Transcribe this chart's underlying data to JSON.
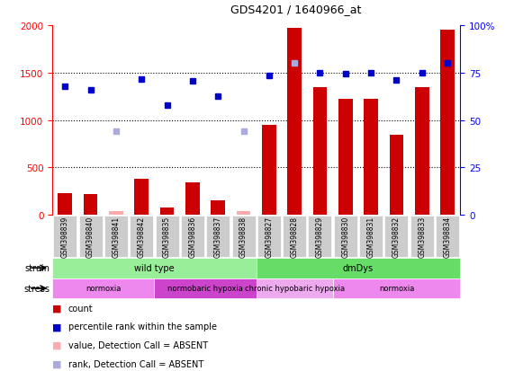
{
  "title": "GDS4201 / 1640966_at",
  "samples": [
    "GSM398839",
    "GSM398840",
    "GSM398841",
    "GSM398842",
    "GSM398835",
    "GSM398836",
    "GSM398837",
    "GSM398838",
    "GSM398827",
    "GSM398828",
    "GSM398829",
    "GSM398830",
    "GSM398831",
    "GSM398832",
    "GSM398833",
    "GSM398834"
  ],
  "count_values": [
    230,
    220,
    40,
    380,
    75,
    340,
    155,
    40,
    950,
    1975,
    1350,
    1220,
    1220,
    840,
    1350,
    1950
  ],
  "absent_count": [
    null,
    null,
    40,
    null,
    null,
    null,
    null,
    40,
    null,
    null,
    null,
    null,
    null,
    null,
    null,
    null
  ],
  "rank_values": [
    1360,
    1320,
    null,
    1430,
    1155,
    1415,
    1250,
    null,
    1465,
    null,
    1500,
    1490,
    1495,
    1420,
    1495,
    1600
  ],
  "absent_rank": [
    null,
    null,
    880,
    null,
    null,
    null,
    null,
    880,
    null,
    1600,
    null,
    null,
    null,
    null,
    null,
    null
  ],
  "ylim_left": [
    0,
    2000
  ],
  "ylim_right": [
    0,
    100
  ],
  "yticks_left": [
    0,
    500,
    1000,
    1500,
    2000
  ],
  "yticks_right": [
    0,
    25,
    50,
    75,
    100
  ],
  "bar_color": "#cc0000",
  "absent_bar_color": "#ffaaaa",
  "rank_color": "#0000cc",
  "absent_rank_color": "#aaaadd",
  "strain_groups": [
    {
      "label": "wild type",
      "start": 0,
      "end": 8,
      "color": "#99ee99"
    },
    {
      "label": "dmDys",
      "start": 8,
      "end": 16,
      "color": "#66dd66"
    }
  ],
  "stress_groups": [
    {
      "label": "normoxia",
      "start": 0,
      "end": 4,
      "color": "#ee88ee"
    },
    {
      "label": "normobaric hypoxia",
      "start": 4,
      "end": 8,
      "color": "#cc44cc"
    },
    {
      "label": "chronic hypobaric hypoxia",
      "start": 8,
      "end": 11,
      "color": "#eeaaee"
    },
    {
      "label": "normoxia",
      "start": 11,
      "end": 16,
      "color": "#ee88ee"
    }
  ],
  "legend_items": [
    {
      "label": "count",
      "color": "#cc0000"
    },
    {
      "label": "percentile rank within the sample",
      "color": "#0000cc"
    },
    {
      "label": "value, Detection Call = ABSENT",
      "color": "#ffaaaa"
    },
    {
      "label": "rank, Detection Call = ABSENT",
      "color": "#aaaadd"
    }
  ]
}
